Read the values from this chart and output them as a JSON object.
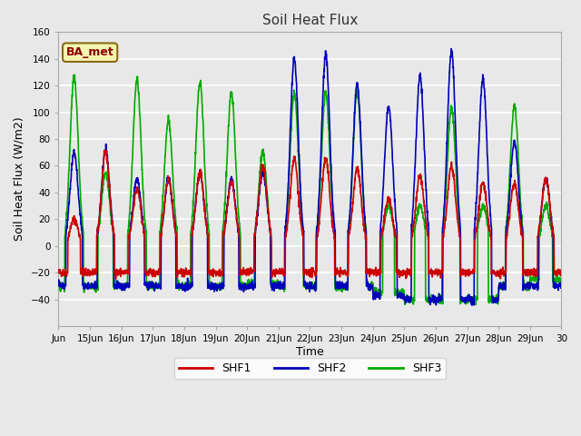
{
  "title": "Soil Heat Flux",
  "xlabel": "Time",
  "ylabel": "Soil Heat Flux (W/m2)",
  "ylim": [
    -60,
    160
  ],
  "background_color": "#e8e8e8",
  "plot_bg_color": "#e8e8e8",
  "grid_color": "white",
  "line_colors": {
    "SHF1": "#cc0000",
    "SHF2": "#0000bb",
    "SHF3": "#00aa00"
  },
  "line_width": 1.2,
  "legend_label": "BA_met",
  "xtick_labels": [
    "Jun",
    "15Jun",
    "16Jun",
    "17Jun",
    "18Jun",
    "19Jun",
    "20Jun",
    "21Jun",
    "22Jun",
    "23Jun",
    "24Jun",
    "25Jun",
    "26Jun",
    "27Jun",
    "28Jun",
    "29Jun",
    "30"
  ],
  "yticks": [
    -40,
    -20,
    0,
    20,
    40,
    60,
    80,
    100,
    120,
    140,
    160
  ],
  "num_days": 16,
  "points_per_day": 144,
  "shf1_day_peaks": [
    20,
    70,
    42,
    50,
    55,
    48,
    60,
    65,
    65,
    58,
    35,
    52,
    60,
    47,
    47,
    50
  ],
  "shf1_night_vals": [
    -20,
    -20,
    -20,
    -20,
    -20,
    -20,
    -20,
    -20,
    -20,
    -20,
    -20,
    -20,
    -20,
    -20,
    -20,
    -20
  ],
  "shf2_day_peaks": [
    70,
    72,
    50,
    50,
    55,
    50,
    55,
    140,
    143,
    121,
    105,
    127,
    146,
    125,
    78,
    50
  ],
  "shf2_night_vals": [
    -30,
    -30,
    -30,
    -30,
    -30,
    -30,
    -30,
    -30,
    -30,
    -30,
    -37,
    -40,
    -40,
    -40,
    -30,
    -30
  ],
  "shf3_day_peaks": [
    127,
    55,
    125,
    94,
    123,
    115,
    70,
    115,
    115,
    115,
    30,
    30,
    104,
    30,
    105,
    30
  ],
  "shf3_night_vals": [
    -30,
    -30,
    -30,
    -30,
    -30,
    -30,
    -28,
    -30,
    -30,
    -30,
    -35,
    -40,
    -40,
    -40,
    -30,
    -25
  ]
}
